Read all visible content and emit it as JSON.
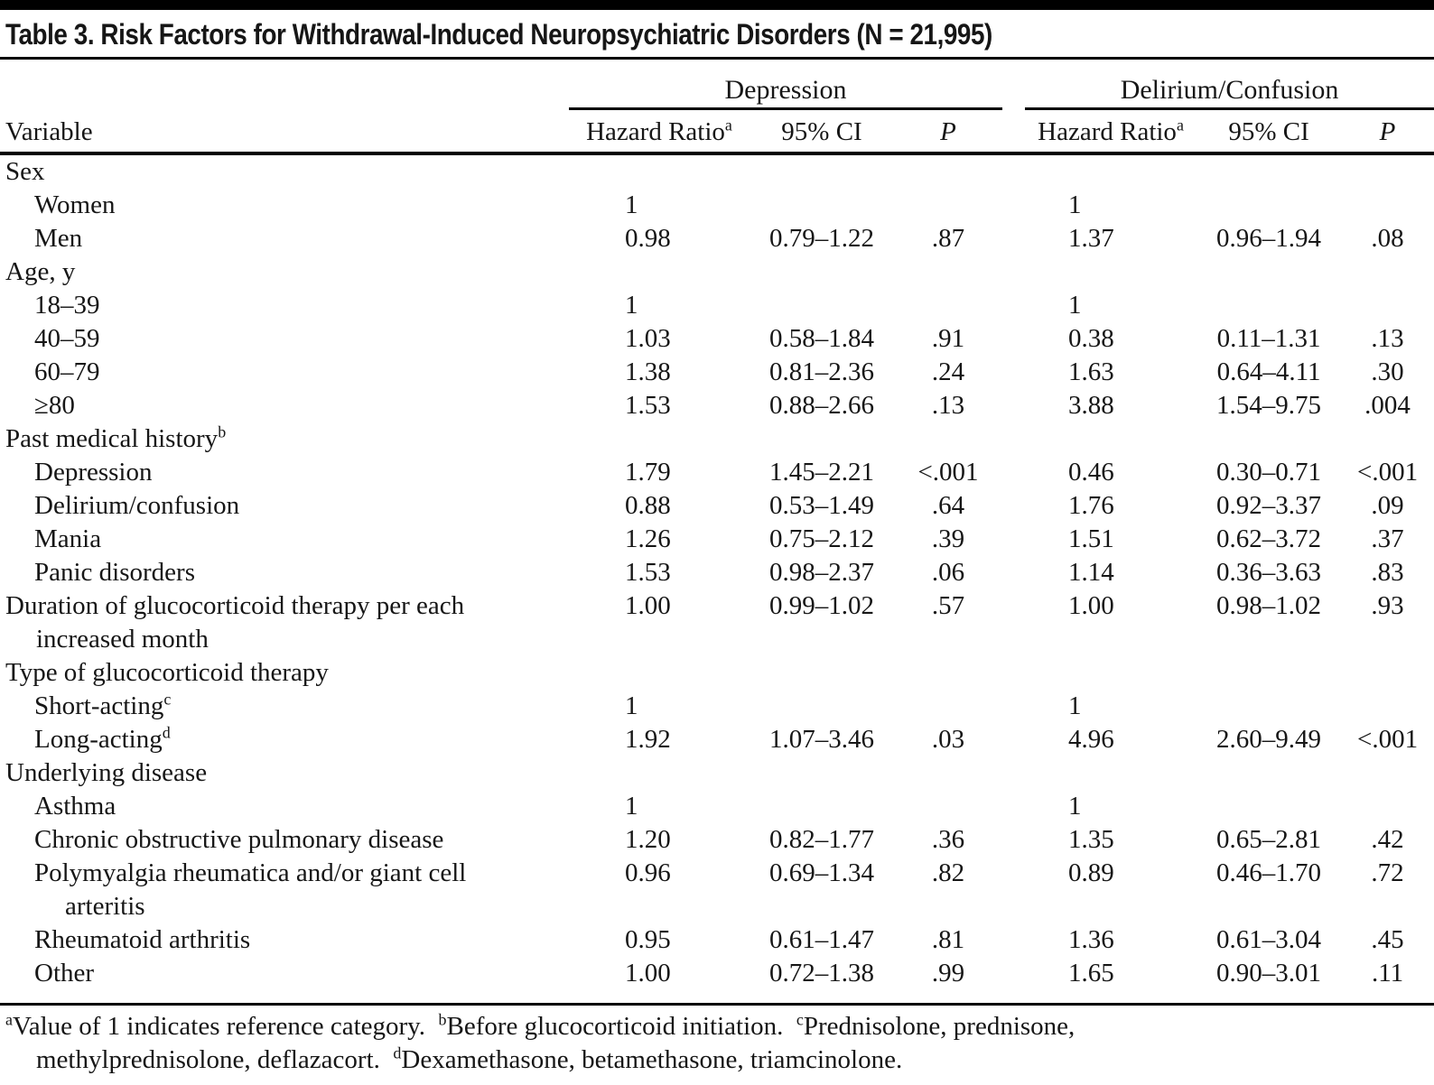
{
  "title": "Table 3. Risk Factors for Withdrawal-Induced Neuropsychiatric Disorders (N = 21,995)",
  "header": {
    "variable": "Variable",
    "groups": [
      {
        "label": "Depression"
      },
      {
        "label": "Delirium/Confusion"
      }
    ],
    "sub": {
      "hazard_ratio": "Hazard Ratio",
      "hazard_ratio_sup": "a",
      "ci": "95% CI",
      "p": "P"
    }
  },
  "rows": [
    {
      "label": "Sex",
      "indent": 0
    },
    {
      "label": "Women",
      "indent": 1,
      "dep": {
        "hr": "1"
      },
      "del": {
        "hr": "1"
      }
    },
    {
      "label": "Men",
      "indent": 1,
      "dep": {
        "hr": "0.98",
        "ci": "0.79–1.22",
        "p": ".87"
      },
      "del": {
        "hr": "1.37",
        "ci": "0.96–1.94",
        "p": ".08"
      }
    },
    {
      "label": "Age, y",
      "indent": 0
    },
    {
      "label": "18–39",
      "indent": 1,
      "dep": {
        "hr": "1"
      },
      "del": {
        "hr": "1"
      }
    },
    {
      "label": "40–59",
      "indent": 1,
      "dep": {
        "hr": "1.03",
        "ci": "0.58–1.84",
        "p": ".91"
      },
      "del": {
        "hr": "0.38",
        "ci": "0.11–1.31",
        "p": ".13"
      }
    },
    {
      "label": "60–79",
      "indent": 1,
      "dep": {
        "hr": "1.38",
        "ci": "0.81–2.36",
        "p": ".24"
      },
      "del": {
        "hr": "1.63",
        "ci": "0.64–4.11",
        "p": ".30"
      }
    },
    {
      "label": "≥80",
      "indent": 1,
      "dep": {
        "hr": "1.53",
        "ci": "0.88–2.66",
        "p": ".13"
      },
      "del": {
        "hr": "3.88",
        "ci": "1.54–9.75",
        "p": ".004"
      }
    },
    {
      "label": "Past medical history",
      "sup": "b",
      "indent": 0
    },
    {
      "label": "Depression",
      "indent": 1,
      "dep": {
        "hr": "1.79",
        "ci": "1.45–2.21",
        "p": "<.001"
      },
      "del": {
        "hr": "0.46",
        "ci": "0.30–0.71",
        "p": "<.001"
      }
    },
    {
      "label": "Delirium/confusion",
      "indent": 1,
      "dep": {
        "hr": "0.88",
        "ci": "0.53–1.49",
        "p": ".64"
      },
      "del": {
        "hr": "1.76",
        "ci": "0.92–3.37",
        "p": ".09"
      }
    },
    {
      "label": "Mania",
      "indent": 1,
      "dep": {
        "hr": "1.26",
        "ci": "0.75–2.12",
        "p": ".39"
      },
      "del": {
        "hr": "1.51",
        "ci": "0.62–3.72",
        "p": ".37"
      }
    },
    {
      "label": "Panic disorders",
      "indent": 1,
      "dep": {
        "hr": "1.53",
        "ci": "0.98–2.37",
        "p": ".06"
      },
      "del": {
        "hr": "1.14",
        "ci": "0.36–3.63",
        "p": ".83"
      }
    },
    {
      "label": "Duration of glucocorticoid therapy per each",
      "label2": "increased month",
      "indent": 0,
      "dep": {
        "hr": "1.00",
        "ci": "0.99–1.02",
        "p": ".57"
      },
      "del": {
        "hr": "1.00",
        "ci": "0.98–1.02",
        "p": ".93"
      }
    },
    {
      "label": "Type of glucocorticoid therapy",
      "indent": 0
    },
    {
      "label": "Short-acting",
      "sup": "c",
      "indent": 1,
      "dep": {
        "hr": "1"
      },
      "del": {
        "hr": "1"
      }
    },
    {
      "label": "Long-acting",
      "sup": "d",
      "indent": 1,
      "dep": {
        "hr": "1.92",
        "ci": "1.07–3.46",
        "p": ".03"
      },
      "del": {
        "hr": "4.96",
        "ci": "2.60–9.49",
        "p": "<.001"
      }
    },
    {
      "label": "Underlying disease",
      "indent": 0
    },
    {
      "label": "Asthma",
      "indent": 1,
      "dep": {
        "hr": "1"
      },
      "del": {
        "hr": "1"
      }
    },
    {
      "label": "Chronic obstructive pulmonary disease",
      "indent": 1,
      "dep": {
        "hr": "1.20",
        "ci": "0.82–1.77",
        "p": ".36"
      },
      "del": {
        "hr": "1.35",
        "ci": "0.65–2.81",
        "p": ".42"
      }
    },
    {
      "label": "Polymyalgia rheumatica and/or giant cell",
      "label2": "arteritis",
      "indent": 1,
      "dep": {
        "hr": "0.96",
        "ci": "0.69–1.34",
        "p": ".82"
      },
      "del": {
        "hr": "0.89",
        "ci": "0.46–1.70",
        "p": ".72"
      }
    },
    {
      "label": "Rheumatoid arthritis",
      "indent": 1,
      "dep": {
        "hr": "0.95",
        "ci": "0.61–1.47",
        "p": ".81"
      },
      "del": {
        "hr": "1.36",
        "ci": "0.61–3.04",
        "p": ".45"
      }
    },
    {
      "label": "Other",
      "indent": 1,
      "dep": {
        "hr": "1.00",
        "ci": "0.72–1.38",
        "p": ".99"
      },
      "del": {
        "hr": "1.65",
        "ci": "0.90–3.01",
        "p": ".11"
      }
    }
  ],
  "footnotes": [
    [
      {
        "sup": "a",
        "text": "Value of 1 indicates reference category.  "
      },
      {
        "sup": "b",
        "text": "Before glucocorticoid initiation.  "
      },
      {
        "sup": "c",
        "text": "Prednisolone, prednisone,"
      }
    ],
    [
      {
        "text": "methylprednisolone, deflazacort.  "
      },
      {
        "sup": "d",
        "text": "Dexamethasone, betamethasone, triamcinolone."
      }
    ]
  ]
}
